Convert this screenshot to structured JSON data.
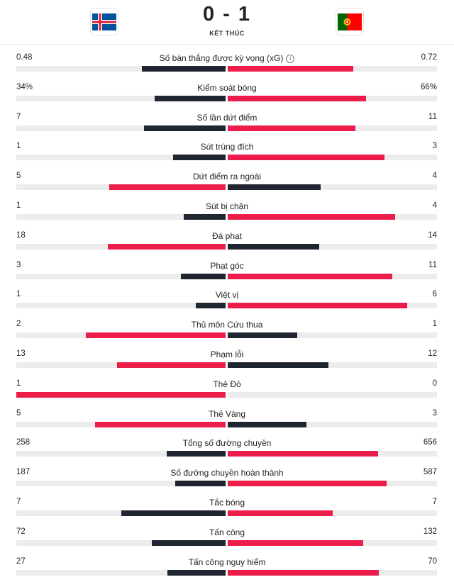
{
  "match": {
    "score": "0 - 1",
    "status": "KẾT THÚC",
    "home_flag": "iceland-flag-icon",
    "away_flag": "portugal-flag-icon"
  },
  "colors": {
    "dark": "#1f2632",
    "red": "#ec1d4b",
    "track": "#ececec"
  },
  "stats": [
    {
      "label": "Số bàn thắng được kỳ vọng (xG)",
      "home": "0.48",
      "away": "0.72",
      "home_frac": 0.4,
      "away_frac": 0.6,
      "info": true
    },
    {
      "label": "Kiểm soát bóng",
      "home": "34%",
      "away": "66%",
      "home_frac": 0.34,
      "away_frac": 0.66
    },
    {
      "label": "Số lần dứt điểm",
      "home": "7",
      "away": "11",
      "home_frac": 0.389,
      "away_frac": 0.611
    },
    {
      "label": "Sút trúng đích",
      "home": "1",
      "away": "3",
      "home_frac": 0.25,
      "away_frac": 0.75
    },
    {
      "label": "Dứt điểm ra ngoài",
      "home": "5",
      "away": "4",
      "home_frac": 0.556,
      "away_frac": 0.444
    },
    {
      "label": "Sút bị chặn",
      "home": "1",
      "away": "4",
      "home_frac": 0.2,
      "away_frac": 0.8
    },
    {
      "label": "Đá phạt",
      "home": "18",
      "away": "14",
      "home_frac": 0.5625,
      "away_frac": 0.4375
    },
    {
      "label": "Phạt góc",
      "home": "3",
      "away": "11",
      "home_frac": 0.214,
      "away_frac": 0.786
    },
    {
      "label": "Việt vị",
      "home": "1",
      "away": "6",
      "home_frac": 0.143,
      "away_frac": 0.857
    },
    {
      "label": "Thủ môn Cứu thua",
      "home": "2",
      "away": "1",
      "home_frac": 0.667,
      "away_frac": 0.333
    },
    {
      "label": "Phạm lỗi",
      "home": "13",
      "away": "12",
      "home_frac": 0.52,
      "away_frac": 0.48
    },
    {
      "label": "Thẻ Đỏ",
      "home": "1",
      "away": "0",
      "home_frac": 1.0,
      "away_frac": 0.0
    },
    {
      "label": "Thẻ Vàng",
      "home": "5",
      "away": "3",
      "home_frac": 0.625,
      "away_frac": 0.375
    },
    {
      "label": "Tổng số đường chuyền",
      "home": "258",
      "away": "656",
      "home_frac": 0.282,
      "away_frac": 0.718
    },
    {
      "label": "Số đường chuyền hoàn thành",
      "home": "187",
      "away": "587",
      "home_frac": 0.242,
      "away_frac": 0.758
    },
    {
      "label": "Tắc bóng",
      "home": "7",
      "away": "7",
      "home_frac": 0.5,
      "away_frac": 0.5
    },
    {
      "label": "Tấn công",
      "home": "72",
      "away": "132",
      "home_frac": 0.353,
      "away_frac": 0.647
    },
    {
      "label": "Tấn công nguy hiểm",
      "home": "27",
      "away": "70",
      "home_frac": 0.278,
      "away_frac": 0.722
    }
  ]
}
